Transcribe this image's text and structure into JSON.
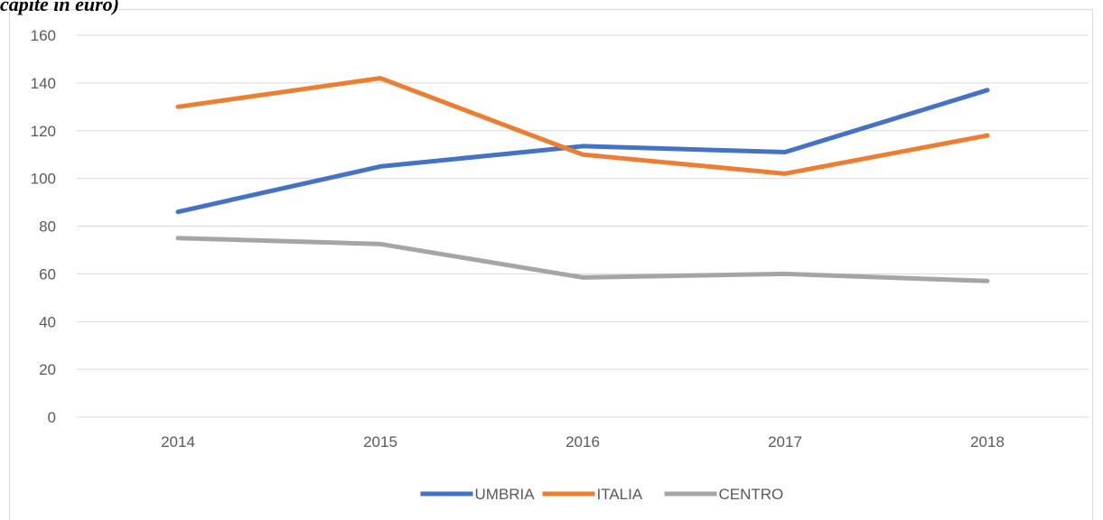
{
  "chart_data": {
    "type": "line",
    "title": "capite in euro)",
    "categories": [
      "2014",
      "2015",
      "2016",
      "2017",
      "2018"
    ],
    "series": [
      {
        "name": "UMBRIA",
        "color": "#4472c4",
        "values": [
          86,
          105,
          113.5,
          111,
          137
        ]
      },
      {
        "name": "ITALIA",
        "color": "#ed7d31",
        "values": [
          130,
          142,
          110,
          102,
          118
        ]
      },
      {
        "name": "CENTRO",
        "color": "#a5a5a5",
        "values": [
          75,
          72.5,
          58.5,
          60,
          57
        ]
      }
    ],
    "ylim": [
      0,
      160
    ],
    "yticks": [
      0,
      20,
      40,
      60,
      80,
      100,
      120,
      140,
      160
    ],
    "grid": true,
    "legend": "bottom"
  }
}
